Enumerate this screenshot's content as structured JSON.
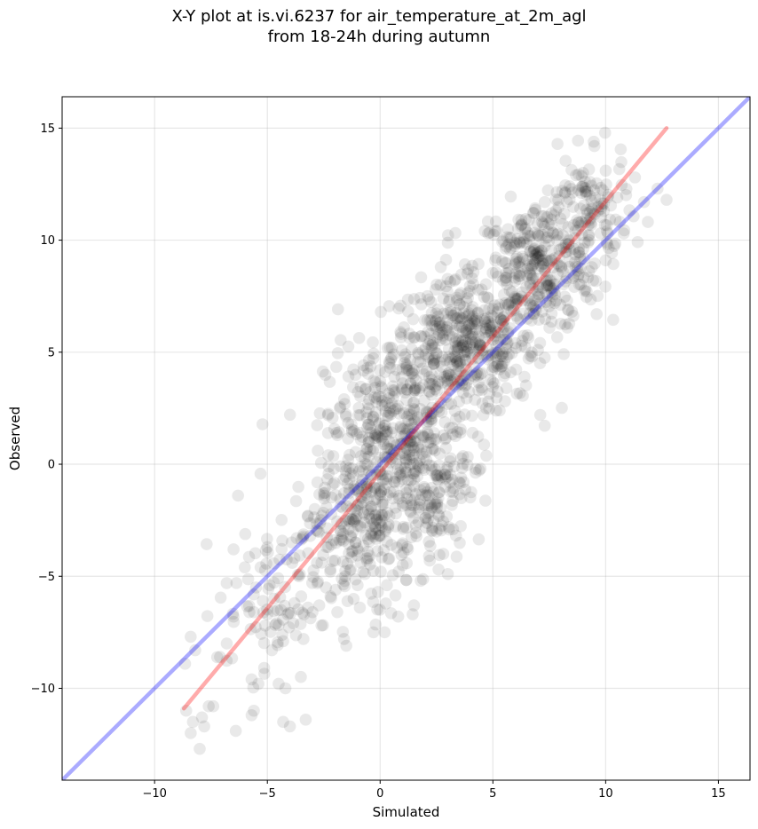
{
  "title_line1": "X-Y plot at is.vi.6237 for air_temperature_at_2m_agl",
  "title_line2": "from 18-24h during autumn",
  "chart_data": {
    "type": "scatter",
    "title": "X-Y plot at is.vi.6237 for air_temperature_at_2m_agl from 18-24h during autumn",
    "xlabel": "Simulated",
    "ylabel": "Observed",
    "xlim": [
      -14.1,
      16.4
    ],
    "ylim": [
      -14.1,
      16.4
    ],
    "xticks": [
      -10,
      -5,
      0,
      5,
      10,
      15
    ],
    "yticks": [
      -10,
      -5,
      0,
      5,
      10,
      15
    ],
    "xtick_labels": [
      "−10",
      "−5",
      "0",
      "5",
      "10",
      "15"
    ],
    "ytick_labels": [
      "−10",
      "−5",
      "0",
      "5",
      "10",
      "15"
    ],
    "grid": true,
    "point_color": "#000000",
    "lines": [
      {
        "kind": "one-to-one",
        "color": "#0000ff",
        "x": [
          -14.1,
          16.4
        ],
        "y": [
          -14.1,
          16.4
        ]
      },
      {
        "kind": "regression",
        "color": "#ff0000",
        "x": [
          -8.7,
          12.7
        ],
        "y": [
          -10.9,
          15.0
        ]
      }
    ],
    "cloud_summary": {
      "points_approx": 1800,
      "x_range": [
        -8.8,
        12.8
      ],
      "y_range": [
        -12.7,
        14.2
      ],
      "densest_center": [
        3.7,
        5.3
      ]
    },
    "points": [
      [
        -8.6,
        -11.0
      ],
      [
        -8.4,
        -12.0
      ],
      [
        -8.3,
        -11.5
      ],
      [
        -8.0,
        -12.7
      ],
      [
        -7.9,
        -11.3
      ],
      [
        -7.8,
        -11.7
      ],
      [
        -7.6,
        -10.8
      ],
      [
        -7.4,
        -10.8
      ],
      [
        -8.4,
        -7.7
      ],
      [
        -8.2,
        -8.3
      ],
      [
        -7.1,
        -8.6
      ],
      [
        -6.8,
        -8.0
      ],
      [
        -6.5,
        -6.8
      ],
      [
        -6.4,
        -11.9
      ],
      [
        -6.5,
        -3.8
      ],
      [
        -6.3,
        -1.4
      ],
      [
        -6.0,
        -4.6
      ],
      [
        -5.8,
        -6.6
      ],
      [
        -5.6,
        -6.6
      ],
      [
        -5.7,
        -9.6
      ],
      [
        -5.6,
        -11.0
      ],
      [
        -5.7,
        -11.2
      ],
      [
        -5.5,
        -5.5
      ],
      [
        -5.4,
        -9.8
      ],
      [
        -5.3,
        -4.6
      ],
      [
        -5.2,
        -6.1
      ],
      [
        -5.1,
        -7.2
      ],
      [
        -5.0,
        -6.7
      ],
      [
        -5.0,
        -3.7
      ],
      [
        -4.9,
        -5.4
      ],
      [
        -4.8,
        -8.3
      ],
      [
        -4.7,
        -6.0
      ],
      [
        -4.6,
        -7.1
      ],
      [
        -4.5,
        -9.8
      ],
      [
        -4.4,
        -6.5
      ],
      [
        -4.3,
        -7.9
      ],
      [
        -4.3,
        -11.5
      ],
      [
        -4.2,
        -10.0
      ],
      [
        -4.1,
        -6.7
      ],
      [
        -4.0,
        -11.7
      ],
      [
        -3.9,
        -4.4
      ],
      [
        -3.8,
        -6.2
      ],
      [
        -3.7,
        -3.3
      ],
      [
        -3.6,
        -5.0
      ],
      [
        -3.5,
        -5.9
      ],
      [
        -3.4,
        -7.8
      ],
      [
        -3.3,
        -11.4
      ],
      [
        -3.2,
        -2.3
      ],
      [
        -3.1,
        -3.2
      ],
      [
        -3.0,
        -6.6
      ],
      [
        -2.9,
        -2.0
      ],
      [
        -2.8,
        -4.4
      ],
      [
        -2.7,
        -6.3
      ],
      [
        -2.6,
        -7.2
      ],
      [
        -2.5,
        -1.3
      ],
      [
        -2.4,
        -5.5
      ],
      [
        -2.3,
        -3.7
      ],
      [
        -2.2,
        -5.9
      ],
      [
        -2.1,
        -0.9
      ],
      [
        -2.0,
        -4.3
      ],
      [
        -1.9,
        -6.6
      ],
      [
        -1.8,
        -3.4
      ],
      [
        -1.7,
        -5.1
      ],
      [
        -1.6,
        -1.3
      ],
      [
        -1.6,
        -7.8
      ],
      [
        -1.5,
        -8.1
      ],
      [
        -1.4,
        -2.9
      ],
      [
        -1.3,
        -4.7
      ],
      [
        -1.2,
        -0.5
      ],
      [
        -1.1,
        -3.5
      ],
      [
        -1.0,
        -5.4
      ],
      [
        -0.9,
        -6.4
      ],
      [
        -0.8,
        -0.8
      ],
      [
        -0.7,
        -2.6
      ],
      [
        -0.6,
        -4.2
      ],
      [
        -0.5,
        1.0
      ],
      [
        -0.4,
        -2.0
      ],
      [
        -0.3,
        -7.5
      ],
      [
        -0.2,
        -3.1
      ],
      [
        -0.1,
        -5.7
      ],
      [
        0.0,
        -0.3
      ],
      [
        0.1,
        -1.7
      ],
      [
        0.2,
        -7.5
      ],
      [
        0.3,
        -5.4
      ],
      [
        0.4,
        2.3
      ],
      [
        0.5,
        -3.6
      ],
      [
        0.6,
        4.9
      ],
      [
        0.7,
        -2.2
      ],
      [
        0.8,
        -6.8
      ],
      [
        0.9,
        5.9
      ],
      [
        1.0,
        -4.5
      ],
      [
        1.1,
        3.2
      ],
      [
        1.2,
        -3.7
      ],
      [
        1.3,
        0.4
      ],
      [
        1.5,
        -6.3
      ],
      [
        1.7,
        4.9
      ],
      [
        1.8,
        -5.2
      ],
      [
        1.9,
        1.2
      ],
      [
        2.0,
        -2.4
      ],
      [
        2.1,
        7.5
      ],
      [
        2.2,
        -4.3
      ],
      [
        2.3,
        6.2
      ],
      [
        2.5,
        -3.0
      ],
      [
        2.6,
        3.7
      ],
      [
        2.8,
        -4.0
      ],
      [
        3.0,
        -4.9
      ],
      [
        3.2,
        -0.7
      ],
      [
        3.3,
        8.2
      ],
      [
        3.5,
        2.8
      ],
      [
        3.7,
        -0.8
      ],
      [
        3.9,
        8.7
      ],
      [
        4.1,
        1.4
      ],
      [
        4.3,
        4.1
      ],
      [
        4.5,
        7.8
      ],
      [
        4.7,
        2.5
      ],
      [
        4.9,
        5.9
      ],
      [
        5.1,
        9.1
      ],
      [
        5.3,
        2.4
      ],
      [
        5.5,
        6.6
      ],
      [
        5.6,
        3.4
      ],
      [
        5.8,
        10.1
      ],
      [
        6.0,
        5.4
      ],
      [
        6.2,
        8.4
      ],
      [
        6.4,
        3.9
      ],
      [
        6.6,
        10.9
      ],
      [
        6.8,
        6.7
      ],
      [
        7.0,
        5.1
      ],
      [
        7.1,
        2.2
      ],
      [
        7.3,
        11.7
      ],
      [
        7.5,
        8.2
      ],
      [
        7.6,
        11.2
      ],
      [
        7.8,
        7.3
      ],
      [
        7.9,
        11.8
      ],
      [
        8.1,
        8.6
      ],
      [
        8.3,
        6.1
      ],
      [
        8.4,
        12.4
      ],
      [
        8.6,
        9.6
      ],
      [
        8.8,
        10.8
      ],
      [
        9.0,
        13.0
      ],
      [
        9.1,
        7.8
      ],
      [
        9.3,
        12.6
      ],
      [
        9.5,
        14.2
      ],
      [
        9.6,
        6.7
      ],
      [
        9.8,
        11.4
      ],
      [
        10.0,
        9.1
      ],
      [
        10.0,
        13.1
      ],
      [
        10.1,
        10.3
      ],
      [
        10.8,
        10.3
      ],
      [
        11.3,
        12.8
      ],
      [
        11.7,
        11.7
      ],
      [
        12.3,
        12.3
      ],
      [
        12.7,
        11.8
      ],
      [
        -1.6,
        2.9
      ],
      [
        -0.9,
        1.4
      ],
      [
        -0.3,
        2.1
      ],
      [
        0.3,
        0.7
      ],
      [
        0.8,
        2.6
      ],
      [
        1.4,
        1.8
      ],
      [
        -2.3,
        0.4
      ],
      [
        -1.9,
        1.3
      ]
    ],
    "clusters": [
      {
        "cx": 3.7,
        "cy": 5.3,
        "sx": 1.6,
        "sy": 1.4,
        "n": 420
      },
      {
        "cx": 7.0,
        "cy": 8.8,
        "sx": 1.4,
        "sy": 1.4,
        "n": 320
      },
      {
        "cx": 0.8,
        "cy": 1.5,
        "sx": 1.6,
        "sy": 1.8,
        "n": 340
      },
      {
        "cx": 0.0,
        "cy": -2.2,
        "sx": 1.3,
        "sy": 1.8,
        "n": 200
      },
      {
        "cx": 9.2,
        "cy": 11.3,
        "sx": 0.9,
        "sy": 1.2,
        "n": 110
      },
      {
        "cx": 2.5,
        "cy": -0.8,
        "sx": 1.0,
        "sy": 1.4,
        "n": 90
      },
      {
        "cx": -2.2,
        "cy": -3.3,
        "sx": 1.2,
        "sy": 1.8,
        "n": 110
      },
      {
        "cx": -5.0,
        "cy": -6.5,
        "sx": 1.1,
        "sy": 1.6,
        "n": 60
      }
    ]
  }
}
